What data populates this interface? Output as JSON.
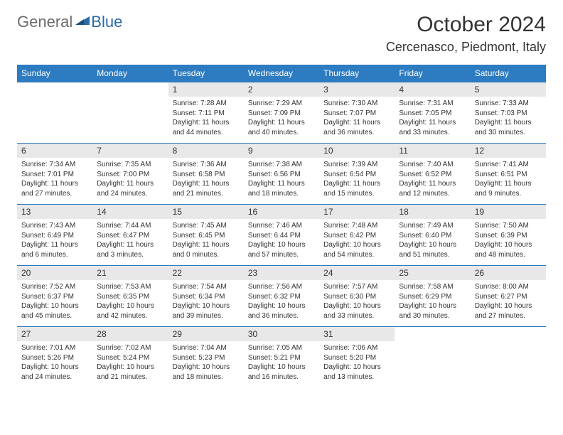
{
  "logo": {
    "part1": "General",
    "part2": "Blue"
  },
  "title": "October 2024",
  "location": "Cercenasco, Piedmont, Italy",
  "colors": {
    "header_bg": "#2d7bc0",
    "header_text": "#ffffff",
    "daynum_bg": "#e8e8e8",
    "text": "#333333",
    "border": "#2d7bc0",
    "logo_gray": "#6b6b6b",
    "logo_blue": "#2b6aa8",
    "background": "#ffffff"
  },
  "fonts": {
    "title_size": 30,
    "location_size": 18,
    "header_size": 12,
    "daynum_size": 12,
    "body_size": 10
  },
  "day_names": [
    "Sunday",
    "Monday",
    "Tuesday",
    "Wednesday",
    "Thursday",
    "Friday",
    "Saturday"
  ],
  "leading_blanks": 2,
  "days": [
    {
      "n": 1,
      "sunrise": "7:28 AM",
      "sunset": "7:11 PM",
      "daylight": "11 hours and 44 minutes."
    },
    {
      "n": 2,
      "sunrise": "7:29 AM",
      "sunset": "7:09 PM",
      "daylight": "11 hours and 40 minutes."
    },
    {
      "n": 3,
      "sunrise": "7:30 AM",
      "sunset": "7:07 PM",
      "daylight": "11 hours and 36 minutes."
    },
    {
      "n": 4,
      "sunrise": "7:31 AM",
      "sunset": "7:05 PM",
      "daylight": "11 hours and 33 minutes."
    },
    {
      "n": 5,
      "sunrise": "7:33 AM",
      "sunset": "7:03 PM",
      "daylight": "11 hours and 30 minutes."
    },
    {
      "n": 6,
      "sunrise": "7:34 AM",
      "sunset": "7:01 PM",
      "daylight": "11 hours and 27 minutes."
    },
    {
      "n": 7,
      "sunrise": "7:35 AM",
      "sunset": "7:00 PM",
      "daylight": "11 hours and 24 minutes."
    },
    {
      "n": 8,
      "sunrise": "7:36 AM",
      "sunset": "6:58 PM",
      "daylight": "11 hours and 21 minutes."
    },
    {
      "n": 9,
      "sunrise": "7:38 AM",
      "sunset": "6:56 PM",
      "daylight": "11 hours and 18 minutes."
    },
    {
      "n": 10,
      "sunrise": "7:39 AM",
      "sunset": "6:54 PM",
      "daylight": "11 hours and 15 minutes."
    },
    {
      "n": 11,
      "sunrise": "7:40 AM",
      "sunset": "6:52 PM",
      "daylight": "11 hours and 12 minutes."
    },
    {
      "n": 12,
      "sunrise": "7:41 AM",
      "sunset": "6:51 PM",
      "daylight": "11 hours and 9 minutes."
    },
    {
      "n": 13,
      "sunrise": "7:43 AM",
      "sunset": "6:49 PM",
      "daylight": "11 hours and 6 minutes."
    },
    {
      "n": 14,
      "sunrise": "7:44 AM",
      "sunset": "6:47 PM",
      "daylight": "11 hours and 3 minutes."
    },
    {
      "n": 15,
      "sunrise": "7:45 AM",
      "sunset": "6:45 PM",
      "daylight": "11 hours and 0 minutes."
    },
    {
      "n": 16,
      "sunrise": "7:46 AM",
      "sunset": "6:44 PM",
      "daylight": "10 hours and 57 minutes."
    },
    {
      "n": 17,
      "sunrise": "7:48 AM",
      "sunset": "6:42 PM",
      "daylight": "10 hours and 54 minutes."
    },
    {
      "n": 18,
      "sunrise": "7:49 AM",
      "sunset": "6:40 PM",
      "daylight": "10 hours and 51 minutes."
    },
    {
      "n": 19,
      "sunrise": "7:50 AM",
      "sunset": "6:39 PM",
      "daylight": "10 hours and 48 minutes."
    },
    {
      "n": 20,
      "sunrise": "7:52 AM",
      "sunset": "6:37 PM",
      "daylight": "10 hours and 45 minutes."
    },
    {
      "n": 21,
      "sunrise": "7:53 AM",
      "sunset": "6:35 PM",
      "daylight": "10 hours and 42 minutes."
    },
    {
      "n": 22,
      "sunrise": "7:54 AM",
      "sunset": "6:34 PM",
      "daylight": "10 hours and 39 minutes."
    },
    {
      "n": 23,
      "sunrise": "7:56 AM",
      "sunset": "6:32 PM",
      "daylight": "10 hours and 36 minutes."
    },
    {
      "n": 24,
      "sunrise": "7:57 AM",
      "sunset": "6:30 PM",
      "daylight": "10 hours and 33 minutes."
    },
    {
      "n": 25,
      "sunrise": "7:58 AM",
      "sunset": "6:29 PM",
      "daylight": "10 hours and 30 minutes."
    },
    {
      "n": 26,
      "sunrise": "8:00 AM",
      "sunset": "6:27 PM",
      "daylight": "10 hours and 27 minutes."
    },
    {
      "n": 27,
      "sunrise": "7:01 AM",
      "sunset": "5:26 PM",
      "daylight": "10 hours and 24 minutes."
    },
    {
      "n": 28,
      "sunrise": "7:02 AM",
      "sunset": "5:24 PM",
      "daylight": "10 hours and 21 minutes."
    },
    {
      "n": 29,
      "sunrise": "7:04 AM",
      "sunset": "5:23 PM",
      "daylight": "10 hours and 18 minutes."
    },
    {
      "n": 30,
      "sunrise": "7:05 AM",
      "sunset": "5:21 PM",
      "daylight": "10 hours and 16 minutes."
    },
    {
      "n": 31,
      "sunrise": "7:06 AM",
      "sunset": "5:20 PM",
      "daylight": "10 hours and 13 minutes."
    }
  ],
  "labels": {
    "sunrise": "Sunrise:",
    "sunset": "Sunset:",
    "daylight": "Daylight:"
  }
}
